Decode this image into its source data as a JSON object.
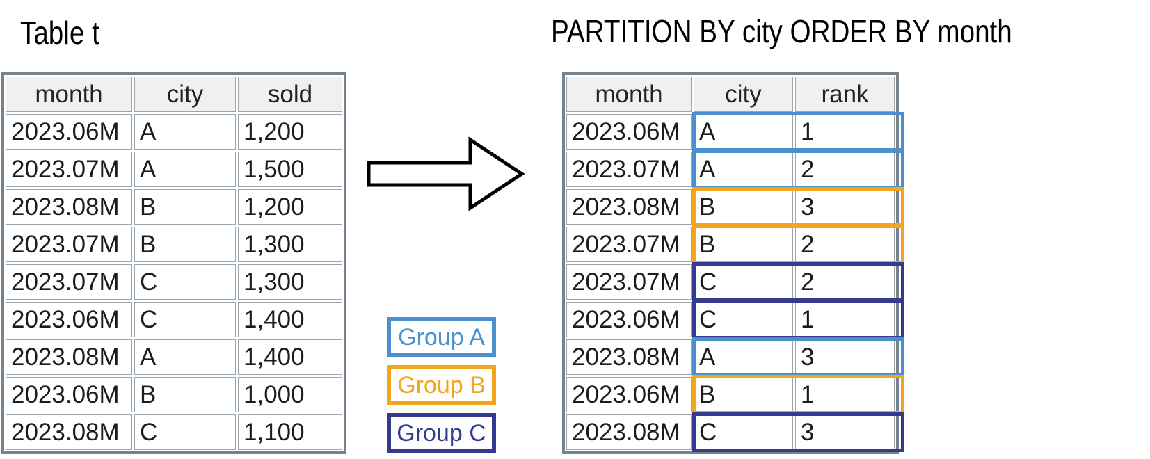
{
  "left_table": {
    "title": "Table t",
    "columns": [
      "month",
      "city",
      "sold"
    ],
    "rows": [
      [
        "2023.06M",
        "A",
        "1,200"
      ],
      [
        "2023.07M",
        "A",
        "1,500"
      ],
      [
        "2023.08M",
        "B",
        "1,200"
      ],
      [
        "2023.07M",
        "B",
        "1,300"
      ],
      [
        "2023.07M",
        "C",
        "1,300"
      ],
      [
        "2023.06M",
        "C",
        "1,400"
      ],
      [
        "2023.08M",
        "A",
        "1,400"
      ],
      [
        "2023.06M",
        "B",
        "1,000"
      ],
      [
        "2023.08M",
        "C",
        "1,100"
      ]
    ]
  },
  "right_table": {
    "title": "PARTITION BY city ORDER BY month",
    "columns": [
      "month",
      "city",
      "rank"
    ],
    "rows": [
      {
        "month": "2023.06M",
        "city": "A",
        "rank": "1",
        "group": "A"
      },
      {
        "month": "2023.07M",
        "city": "A",
        "rank": "2",
        "group": "A"
      },
      {
        "month": "2023.08M",
        "city": "B",
        "rank": "3",
        "group": "B"
      },
      {
        "month": "2023.07M",
        "city": "B",
        "rank": "2",
        "group": "B"
      },
      {
        "month": "2023.07M",
        "city": "C",
        "rank": "2",
        "group": "C"
      },
      {
        "month": "2023.06M",
        "city": "C",
        "rank": "1",
        "group": "C"
      },
      {
        "month": "2023.08M",
        "city": "A",
        "rank": "3",
        "group": "A"
      },
      {
        "month": "2023.06M",
        "city": "B",
        "rank": "1",
        "group": "B"
      },
      {
        "month": "2023.08M",
        "city": "C",
        "rank": "3",
        "group": "C"
      }
    ]
  },
  "legend": {
    "items": [
      {
        "label": "Group A",
        "group": "A"
      },
      {
        "label": "Group B",
        "group": "B"
      },
      {
        "label": "Group C",
        "group": "C"
      }
    ]
  },
  "colors": {
    "group_a": "#4a90ce",
    "group_b": "#f2a51d",
    "group_c": "#343b8e",
    "table_border": "#77828f",
    "cell_border": "#9aa5b2",
    "header_bg": "#f0f0f0",
    "arrow_outline": "#000000",
    "arrow_fill": "#ffffff"
  },
  "layout_hints": {
    "left_column_widths": [
      182,
      146,
      150
    ],
    "right_column_widths": [
      180,
      143,
      143
    ]
  }
}
